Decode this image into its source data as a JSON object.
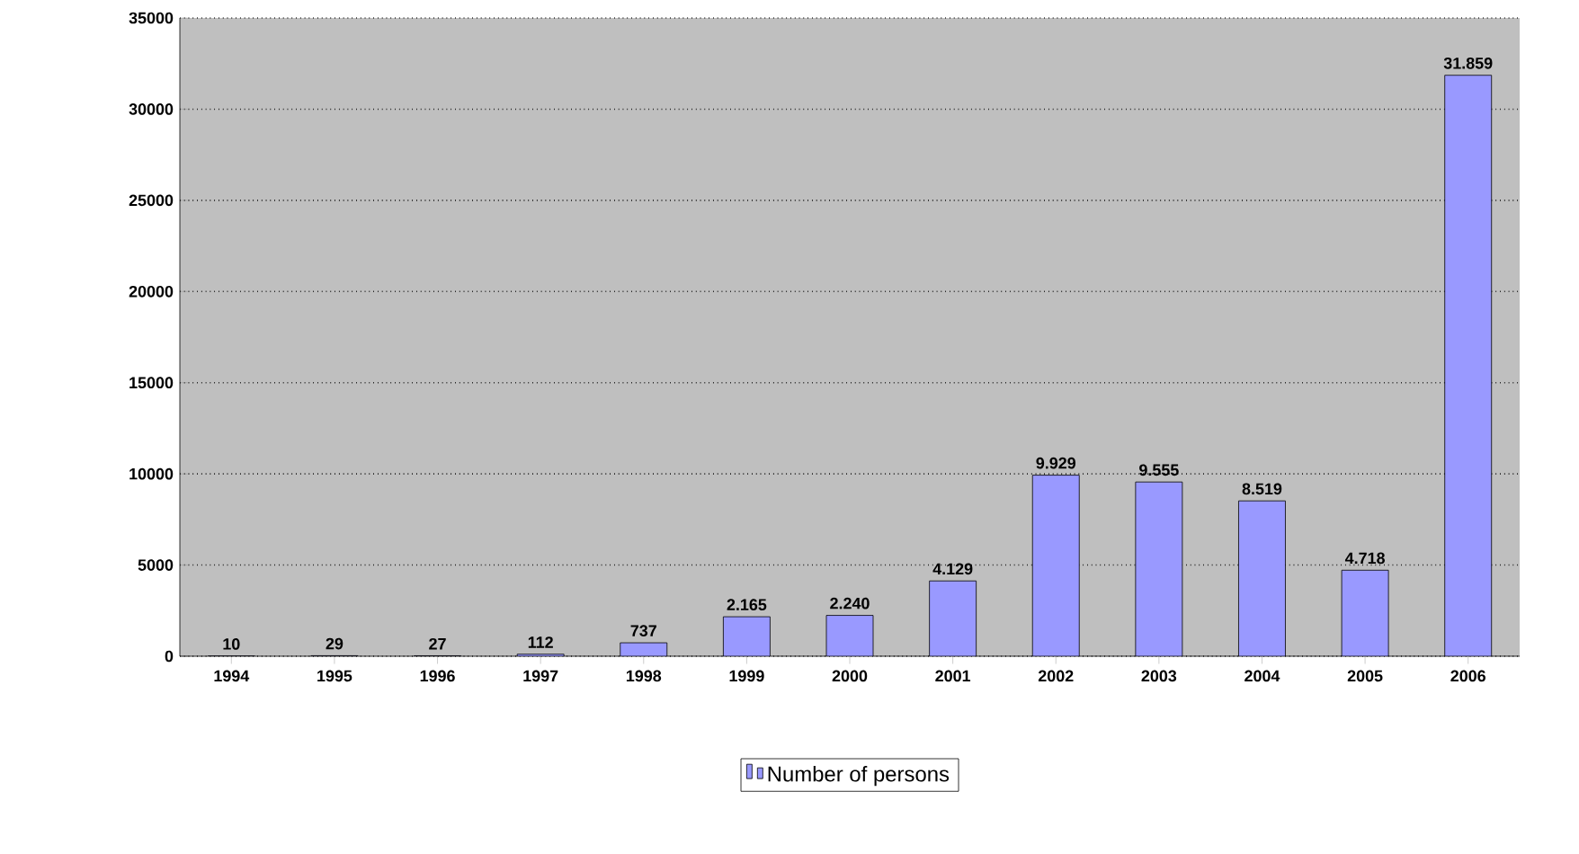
{
  "chart_data": {
    "type": "bar",
    "categories": [
      "1994",
      "1995",
      "1996",
      "1997",
      "1998",
      "1999",
      "2000",
      "2001",
      "2002",
      "2003",
      "2004",
      "2005",
      "2006"
    ],
    "series": [
      {
        "name": "Number of persons",
        "color": "#9999ff",
        "values": [
          10,
          29,
          27,
          112,
          737,
          2165,
          2240,
          4129,
          9929,
          9555,
          8519,
          4718,
          31859
        ],
        "value_labels": [
          "10",
          "29",
          "27",
          "112",
          "737",
          "2.165",
          "2.240",
          "4.129",
          "9.929",
          "9.555",
          "8.519",
          "4.718",
          "31.859"
        ]
      }
    ],
    "ylim": [
      0,
      35000
    ],
    "yticks": [
      0,
      5000,
      10000,
      15000,
      20000,
      25000,
      30000,
      35000
    ],
    "grid": "y",
    "legend": "bottom"
  }
}
